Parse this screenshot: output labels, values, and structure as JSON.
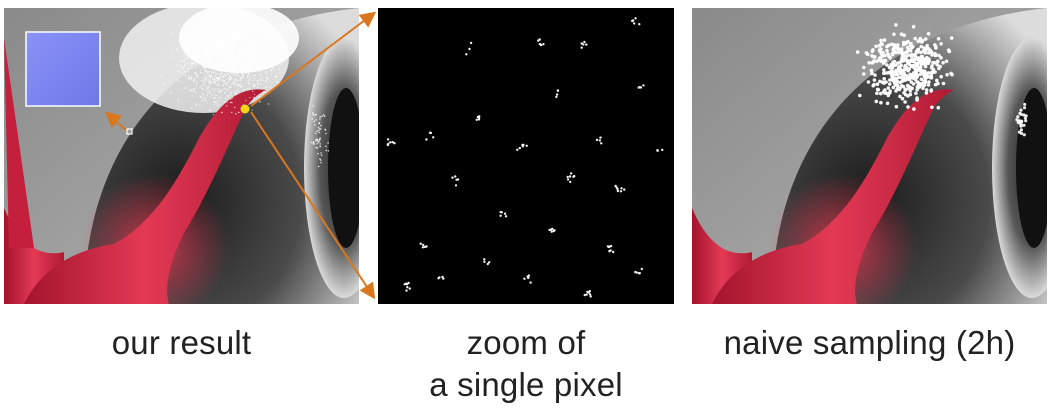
{
  "captions": {
    "left": "our result",
    "middle_line1": "zoom of",
    "middle_line2": "a single pixel",
    "right": "naive sampling (2h)"
  },
  "colors": {
    "annotation_arrow": "#d9771f",
    "highlight": "#f2d31a",
    "shell_red": "#d72a45",
    "background_gray": "#8c8c8c",
    "normal_map_blue": "#7b84f0"
  }
}
